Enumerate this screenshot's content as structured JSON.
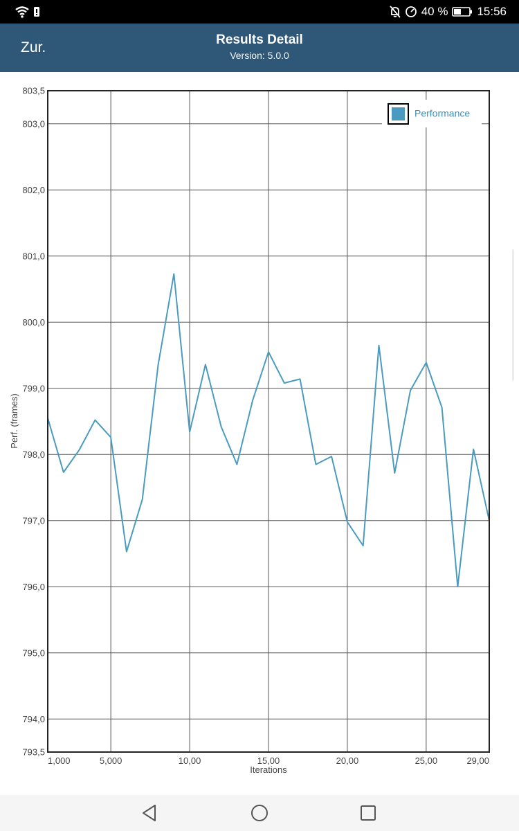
{
  "status_bar": {
    "battery_percent": "40 %",
    "time": "15:56",
    "icons": [
      "wifi-icon",
      "sim-icon",
      "mute-bell-icon",
      "speed-icon",
      "battery-icon"
    ]
  },
  "header": {
    "back_label": "Zur.",
    "title": "Results Detail",
    "subtitle": "Version: 5.0.0"
  },
  "chart_data": {
    "type": "line",
    "title": "",
    "xlabel": "Iterations",
    "ylabel": "Perf. (frames)",
    "xlim": [
      0,
      28
    ],
    "ylim": [
      793.5,
      803.5
    ],
    "x_ticks": [
      {
        "v": 0,
        "label": "1,000"
      },
      {
        "v": 4,
        "label": "5,000"
      },
      {
        "v": 9,
        "label": "10,00"
      },
      {
        "v": 14,
        "label": "15,00"
      },
      {
        "v": 19,
        "label": "20,00"
      },
      {
        "v": 24,
        "label": "25,00"
      },
      {
        "v": 28,
        "label": "29,00"
      }
    ],
    "y_ticks": [
      {
        "v": 793.5,
        "label": "793,5"
      },
      {
        "v": 794,
        "label": "794,0"
      },
      {
        "v": 795,
        "label": "795,0"
      },
      {
        "v": 796,
        "label": "796,0"
      },
      {
        "v": 797,
        "label": "797,0"
      },
      {
        "v": 798,
        "label": "798,0"
      },
      {
        "v": 799,
        "label": "799,0"
      },
      {
        "v": 800,
        "label": "800,0"
      },
      {
        "v": 801,
        "label": "801,0"
      },
      {
        "v": 802,
        "label": "802,0"
      },
      {
        "v": 803,
        "label": "803,0"
      },
      {
        "v": 803.5,
        "label": "803,5"
      }
    ],
    "legend_position": "top-right",
    "grid": true,
    "series": [
      {
        "name": "Performance",
        "color": "#4a9bbf",
        "x": [
          1,
          2,
          3,
          4,
          5,
          6,
          7,
          8,
          9,
          10,
          11,
          12,
          13,
          14,
          15,
          16,
          17,
          18,
          19,
          20,
          21,
          22,
          23,
          24,
          25,
          26,
          27,
          28,
          29
        ],
        "values": [
          798.55,
          797.73,
          798.07,
          798.52,
          798.26,
          796.53,
          797.32,
          799.35,
          800.73,
          798.34,
          799.36,
          798.42,
          797.85,
          798.82,
          799.55,
          799.08,
          799.14,
          797.85,
          797.97,
          796.98,
          796.62,
          799.65,
          797.72,
          798.97,
          799.39,
          798.71,
          796.0,
          798.08,
          797.0
        ]
      }
    ]
  },
  "nav_bar": {
    "buttons": [
      "back-nav-icon",
      "home-nav-icon",
      "recents-nav-icon"
    ]
  }
}
